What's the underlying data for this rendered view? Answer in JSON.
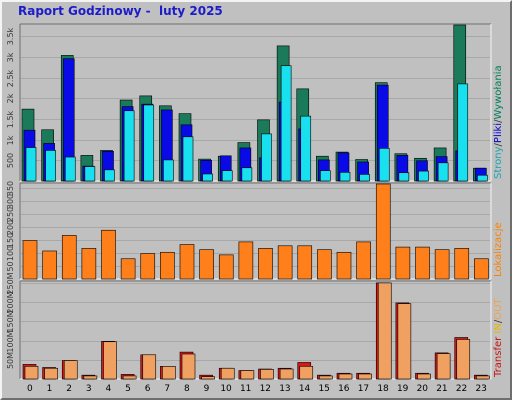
{
  "title": "Raport Godzinowy -  luty 2025",
  "chart_data": [
    {
      "type": "bar",
      "id": "requests",
      "side_label": [
        {
          "text": "Strony",
          "color": "#1aa6b0"
        },
        {
          "text": "/",
          "color": "#3a3a3a"
        },
        {
          "text": "Pliki",
          "color": "#0000cc"
        },
        {
          "text": "/",
          "color": "#3a3a3a"
        },
        {
          "text": "Wywołania",
          "color": "#00805a"
        }
      ],
      "categories": [
        "0",
        "1",
        "2",
        "3",
        "4",
        "5",
        "6",
        "7",
        "8",
        "9",
        "10",
        "11",
        "12",
        "13",
        "14",
        "15",
        "16",
        "17",
        "18",
        "19",
        "20",
        "21",
        "22",
        "23"
      ],
      "yticks": [
        500,
        1000,
        1500,
        2000,
        2500,
        3000,
        3500
      ],
      "ytick_labels": [
        "500",
        "1k",
        "1.5k",
        "2k",
        "2.5k",
        "3k",
        "3.5k"
      ],
      "ylim": [
        0,
        3800
      ],
      "series": [
        {
          "name": "Wywołania",
          "color": "#1a7a5a",
          "values": [
            1740,
            1240,
            3040,
            620,
            740,
            1960,
            2060,
            1820,
            1630,
            530,
            600,
            930,
            1480,
            3270,
            2230,
            600,
            700,
            520,
            2380,
            660,
            550,
            800,
            3860,
            310
          ]
        },
        {
          "name": "Pliki",
          "color": "#0a0ae6",
          "values": [
            1230,
            910,
            2960,
            360,
            720,
            1800,
            1860,
            1720,
            1360,
            500,
            610,
            800,
            560,
            1910,
            1260,
            510,
            680,
            460,
            2320,
            620,
            490,
            590,
            730,
            310
          ]
        },
        {
          "name": "Strony",
          "color": "#19e0ee",
          "values": [
            810,
            740,
            580,
            350,
            270,
            1700,
            1840,
            510,
            1070,
            170,
            250,
            320,
            1140,
            2790,
            1570,
            250,
            210,
            160,
            790,
            200,
            240,
            440,
            2350,
            140
          ]
        }
      ]
    },
    {
      "type": "bar",
      "id": "locations",
      "side_label": [
        {
          "text": "Lokalizacje",
          "color": "#ff8000"
        }
      ],
      "categories": [
        "0",
        "1",
        "2",
        "3",
        "4",
        "5",
        "6",
        "7",
        "8",
        "9",
        "10",
        "11",
        "12",
        "13",
        "14",
        "15",
        "16",
        "17",
        "18",
        "19",
        "20",
        "21",
        "22",
        "23"
      ],
      "yticks": [
        50,
        100,
        150,
        200,
        250,
        300,
        350
      ],
      "ytick_labels": [
        "50",
        "100",
        "150",
        "200",
        "250",
        "300",
        "350"
      ],
      "ylim": [
        0,
        370
      ],
      "series": [
        {
          "name": "Lokalizacje",
          "color": "#ff7f1a",
          "values": [
            148,
            108,
            168,
            118,
            188,
            78,
            98,
            103,
            133,
            113,
            93,
            143,
            118,
            128,
            128,
            113,
            103,
            143,
            375,
            123,
            123,
            113,
            118,
            78
          ]
        }
      ]
    },
    {
      "type": "bar",
      "id": "transfer",
      "side_label": [
        {
          "text": "Transfer",
          "color": "#cc1010"
        },
        {
          "text": " ",
          "color": "#3a3a3a"
        },
        {
          "text": "IN",
          "color": "#e6b800"
        },
        {
          "text": "/",
          "color": "#3a3a3a"
        },
        {
          "text": "OUT",
          "color": "#f0a050"
        }
      ],
      "categories": [
        "0",
        "1",
        "2",
        "3",
        "4",
        "5",
        "6",
        "7",
        "8",
        "9",
        "10",
        "11",
        "12",
        "13",
        "14",
        "15",
        "16",
        "17",
        "18",
        "19",
        "20",
        "21",
        "22",
        "23"
      ],
      "yticks": [
        50,
        100,
        150,
        200,
        250
      ],
      "ytick_labels": [
        "50M",
        "100M",
        "150M",
        "200M",
        "250M"
      ],
      "ylim": [
        0,
        255
      ],
      "series": [
        {
          "name": "Transfer",
          "color": "#d81818",
          "values": [
            38,
            30,
            48,
            10,
            98,
            12,
            63,
            33,
            70,
            10,
            28,
            22,
            26,
            28,
            43,
            10,
            15,
            15,
            250,
            198,
            15,
            68,
            108,
            10
          ]
        },
        {
          "name": "OUT",
          "color": "#f0a060",
          "values": [
            33,
            28,
            48,
            8,
            97,
            8,
            63,
            33,
            65,
            6,
            28,
            22,
            25,
            26,
            33,
            8,
            13,
            13,
            250,
            196,
            13,
            66,
            103,
            8
          ]
        }
      ]
    }
  ]
}
